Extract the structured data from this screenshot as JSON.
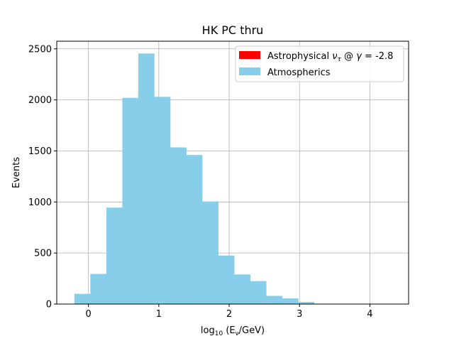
{
  "chart_data": {
    "type": "histogram",
    "title": "HK PC thru",
    "xlabel_prefix": "log",
    "xlabel_sub": "10",
    "xlabel_rest": " (E",
    "xlabel_nu": "ν",
    "xlabel_tail": "/GeV)",
    "ylabel": "Events",
    "xlim": [
      -0.45,
      4.55
    ],
    "ylim": [
      0,
      2575
    ],
    "xticks": [
      0,
      1,
      2,
      3,
      4
    ],
    "yticks": [
      0,
      500,
      1000,
      1500,
      2000,
      2500
    ],
    "grid": true,
    "legend_position": "top-right",
    "series": [
      {
        "name": "Astrophysical ν_τ @ γ = -2.8",
        "legend_main": "Astrophysical ",
        "legend_nu": "ν",
        "legend_sub": "τ",
        "legend_mid": " @ ",
        "legend_gamma": "γ",
        "legend_end": " = -2.8",
        "color": "#ff0000",
        "bins": []
      },
      {
        "name": "Atmospherics",
        "color": "#87ceeb",
        "bin_width": 0.2272,
        "bins": [
          {
            "x0": -0.2,
            "value": 100
          },
          {
            "x0": 0.0272,
            "value": 295
          },
          {
            "x0": 0.2544,
            "value": 945
          },
          {
            "x0": 0.4816,
            "value": 2020
          },
          {
            "x0": 0.7088,
            "value": 2455
          },
          {
            "x0": 0.936,
            "value": 2030
          },
          {
            "x0": 1.1632,
            "value": 1535
          },
          {
            "x0": 1.3904,
            "value": 1460
          },
          {
            "x0": 1.6176,
            "value": 1005
          },
          {
            "x0": 1.8448,
            "value": 475
          },
          {
            "x0": 2.072,
            "value": 290
          },
          {
            "x0": 2.2992,
            "value": 225
          },
          {
            "x0": 2.5264,
            "value": 80
          },
          {
            "x0": 2.7536,
            "value": 55
          },
          {
            "x0": 2.9808,
            "value": 20
          },
          {
            "x0": 3.208,
            "value": 3
          },
          {
            "x0": 3.4352,
            "value": 1
          },
          {
            "x0": 3.6624,
            "value": 0
          },
          {
            "x0": 3.8896,
            "value": 0
          },
          {
            "x0": 4.1168,
            "value": 0
          }
        ]
      }
    ]
  }
}
